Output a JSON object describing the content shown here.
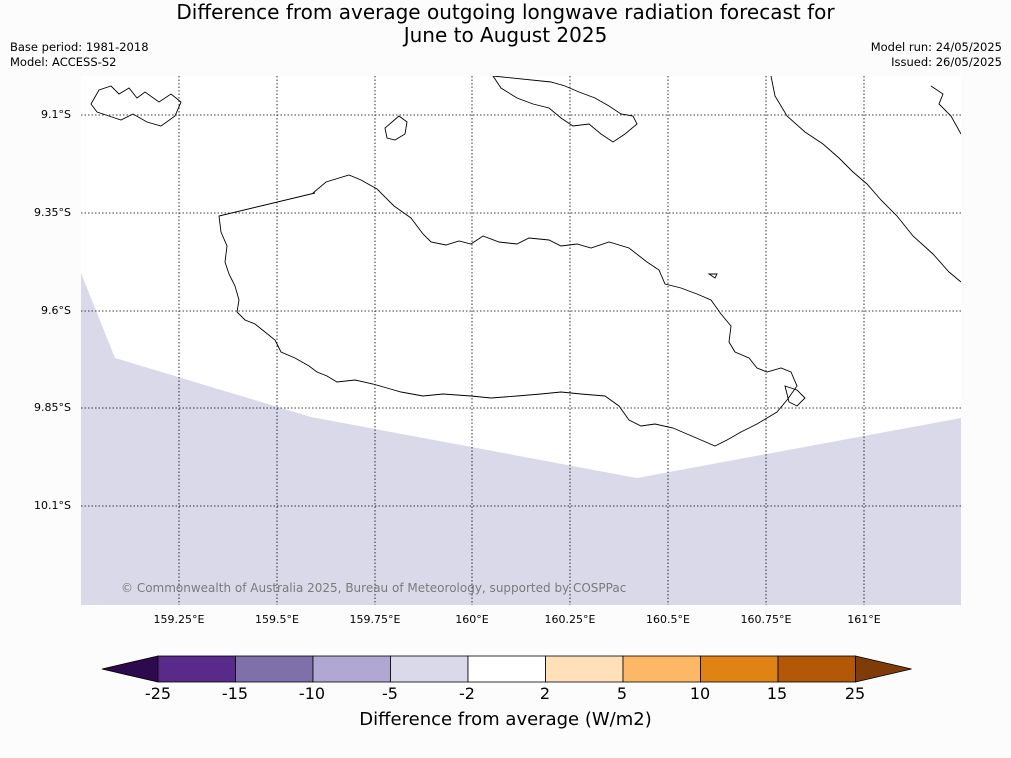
{
  "title_line1": "Difference from average outgoing longwave radiation forecast for",
  "title_line2": "June to August 2025",
  "base_period": "Base period: 1981-2018",
  "model": "Model: ACCESS-S2",
  "model_run": "Model run: 24/05/2025",
  "issued": "Issued: 26/05/2025",
  "copyright": "© Commonwealth of Australia 2025, Bureau of Meteorology, supported by COSPPac",
  "lat_labels": [
    "9.1°S",
    "9.35°S",
    "9.6°S",
    "9.85°S",
    "10.1°S"
  ],
  "lon_labels": [
    "159.25°E",
    "159.5°E",
    "159.75°E",
    "160°E",
    "160.25°E",
    "160.5°E",
    "160.75°E",
    "161°E"
  ],
  "colorbar": {
    "title": "Difference from average (W/m2)",
    "tick_labels": [
      "-25",
      "-15",
      "-10",
      "-5",
      "-2",
      "2",
      "5",
      "10",
      "15",
      "25"
    ],
    "colors": [
      "#2d0a4e",
      "#5a2a8a",
      "#8070aa",
      "#b0a8d2",
      "#d9d9ea",
      "#ffffff",
      "#ffe0b8",
      "#fdb865",
      "#e08214",
      "#b35806",
      "#7f3b08"
    ]
  },
  "map_fill_color": "#d9d9ea"
}
